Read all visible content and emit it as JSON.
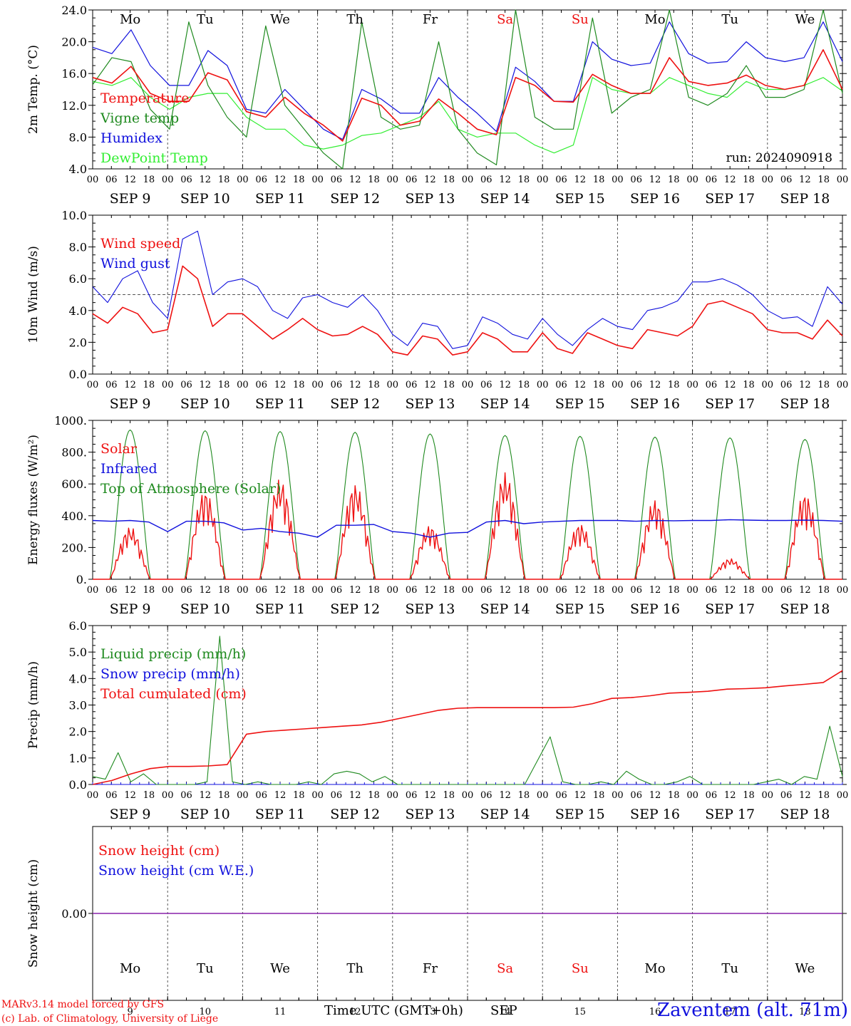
{
  "colors": {
    "red": "#ee1111",
    "dark_green": "#1f8a1f",
    "blue": "#1111dd",
    "light_green": "#33ee33",
    "purple": "#8822aa",
    "grid": "#333333"
  },
  "days": {
    "weekday_labels": [
      "Mo",
      "Tu",
      "We",
      "Th",
      "Fr",
      "Sa",
      "Su",
      "Mo",
      "Tu",
      "We"
    ],
    "weekend_indices": [
      5,
      6
    ],
    "date_labels": [
      "SEP  9",
      "SEP 10",
      "SEP 11",
      "SEP 12",
      "SEP 13",
      "SEP 14",
      "SEP 15",
      "SEP 16",
      "SEP 17",
      "SEP 18"
    ],
    "hour_labels": [
      "00",
      "06",
      "12",
      "18"
    ],
    "final_hour_label": "00",
    "day_numbers": [
      "9",
      "10",
      "11",
      "12",
      "13",
      "14",
      "15",
      "16",
      "17",
      "18"
    ]
  },
  "footer": {
    "model": "MARv3.14 model forced by GFS",
    "lab": "(c) Lab. of Climatology, University of Liege",
    "time_axis": "Time UTC (GMT+0h)",
    "month": "SEP",
    "station": "Zaventem (alt. 71m)"
  },
  "chart_data": [
    {
      "type": "line",
      "ylabel": "2m Temp. (°C)",
      "ylim": [
        4,
        24
      ],
      "yticks": [
        "4.0",
        "8.0",
        "12.0",
        "16.0",
        "20.0",
        "24.0"
      ],
      "annotation": "run: 2024090918",
      "x_unit": "hours since 2024-09-09 00 UTC, 6-hourly",
      "series": [
        {
          "name": "Temperature",
          "color": "red",
          "width": 1.6,
          "values": [
            15.5,
            14.8,
            16.9,
            13.5,
            12.5,
            12.5,
            16.1,
            15.2,
            11.2,
            10.5,
            13.0,
            11.0,
            9.5,
            7.5,
            12.9,
            12.0,
            9.5,
            10.0,
            12.8,
            11.0,
            9.0,
            8.3,
            15.5,
            14.5,
            12.5,
            12.4,
            15.9,
            14.5,
            13.5,
            13.5,
            18.0,
            15.0,
            14.5,
            14.8,
            15.8,
            14.5,
            14.0,
            14.5,
            19.0,
            14.0
          ]
        },
        {
          "name": "Vigne temp",
          "color": "dark_green",
          "width": 1.2,
          "values": [
            14.6,
            18.0,
            17.5,
            11.5,
            9.0,
            22.5,
            14.5,
            10.5,
            8.0,
            22.0,
            12.0,
            9.0,
            6.0,
            4.0,
            22.5,
            10.5,
            9.0,
            9.5,
            20.0,
            9.0,
            6.0,
            4.5,
            24.0,
            10.5,
            9.0,
            9.0,
            23.0,
            11.0,
            13.0,
            14.0,
            24.0,
            13.0,
            12.0,
            13.5,
            17.0,
            13.0,
            13.0,
            14.0,
            24.0,
            13.5
          ]
        },
        {
          "name": "Humidex",
          "color": "blue",
          "width": 1.2,
          "values": [
            19.3,
            18.5,
            21.5,
            17.0,
            14.5,
            14.5,
            18.9,
            17.0,
            11.5,
            11.0,
            14.0,
            11.5,
            9.0,
            7.7,
            14.0,
            12.8,
            11.0,
            11.0,
            15.5,
            13.0,
            11.0,
            8.7,
            16.8,
            15.0,
            12.5,
            12.5,
            20.0,
            17.8,
            17.0,
            17.3,
            22.5,
            18.5,
            17.3,
            17.5,
            20.0,
            18.0,
            17.5,
            18.0,
            22.5,
            17.5
          ]
        },
        {
          "name": "DewPoint Temp",
          "color": "light_green",
          "width": 1.2,
          "values": [
            15.0,
            14.5,
            15.5,
            13.0,
            11.5,
            13.0,
            13.5,
            13.5,
            10.5,
            9.0,
            9.0,
            7.0,
            6.5,
            7.0,
            8.2,
            8.5,
            9.5,
            10.5,
            12.5,
            9.0,
            8.0,
            8.5,
            8.5,
            7.0,
            6.0,
            7.0,
            15.5,
            14.0,
            13.5,
            13.5,
            15.5,
            14.5,
            13.5,
            13.0,
            15.0,
            14.0,
            14.0,
            14.5,
            15.5,
            13.8
          ]
        }
      ]
    },
    {
      "type": "line",
      "ylabel": "10m Wind (m/s)",
      "ylim": [
        0,
        10
      ],
      "yticks": [
        "0.0",
        "2.0",
        "4.0",
        "6.0",
        "8.0",
        "10.0"
      ],
      "reference_line": 5,
      "series": [
        {
          "name": "Wind speed",
          "color": "red",
          "width": 1.6,
          "values": [
            3.8,
            3.2,
            4.2,
            3.8,
            2.6,
            2.8,
            6.8,
            6.0,
            3.0,
            3.8,
            3.8,
            3.0,
            2.2,
            2.8,
            3.5,
            2.8,
            2.4,
            2.5,
            3.0,
            2.5,
            1.4,
            1.2,
            2.4,
            2.2,
            1.2,
            1.4,
            2.6,
            2.2,
            1.4,
            1.4,
            2.6,
            1.6,
            1.3,
            2.6,
            2.2,
            1.8,
            1.6,
            2.8,
            2.6,
            2.4,
            3.0,
            4.4,
            4.6,
            4.2,
            3.8,
            2.8,
            2.6,
            2.6,
            2.2,
            3.4,
            2.4
          ]
        },
        {
          "name": "Wind gust",
          "color": "blue",
          "width": 1.1,
          "values": [
            5.5,
            4.5,
            6.0,
            6.5,
            4.5,
            3.5,
            8.5,
            9.0,
            5.0,
            5.8,
            6.0,
            5.5,
            4.0,
            3.5,
            4.8,
            5.0,
            4.5,
            4.2,
            5.0,
            4.0,
            2.5,
            1.8,
            3.2,
            3.0,
            1.6,
            1.8,
            3.6,
            3.2,
            2.5,
            2.2,
            3.5,
            2.5,
            1.8,
            2.8,
            3.5,
            3.0,
            2.8,
            4.0,
            4.2,
            4.6,
            5.8,
            5.8,
            6.0,
            5.6,
            5.0,
            4.0,
            3.5,
            3.6,
            3.0,
            5.5,
            4.4
          ]
        }
      ]
    },
    {
      "type": "line",
      "ylabel": "Energy fluxes (W/m²)",
      "ylim": [
        0,
        1000
      ],
      "yticks": [
        "0.",
        "200.",
        "400.",
        "600.",
        "800.",
        "1000."
      ],
      "series": [
        {
          "name": "Solar",
          "color": "red",
          "width": 1.4,
          "day_peaks": [
            330,
            560,
            630,
            600,
            340,
            670,
            350,
            500,
            130,
            540
          ]
        },
        {
          "name": "Infrared",
          "color": "blue",
          "width": 1.4,
          "values": [
            370,
            365,
            370,
            360,
            300,
            365,
            365,
            355,
            310,
            320,
            300,
            290,
            265,
            340,
            340,
            345,
            300,
            290,
            265,
            290,
            295,
            360,
            370,
            350,
            360,
            365,
            370,
            370,
            370,
            365,
            370,
            368,
            370,
            370,
            375,
            372,
            370,
            370,
            372,
            370,
            365
          ]
        },
        {
          "name": "Top of Atmosphere (Solar)",
          "color": "dark_green",
          "width": 1.1,
          "day_peaks": [
            940,
            935,
            930,
            925,
            915,
            905,
            900,
            895,
            890,
            880
          ]
        }
      ]
    },
    {
      "type": "line",
      "ylabel": "Precip (mm/h)",
      "ylim": [
        0,
        6
      ],
      "yticks": [
        "0.0",
        "1.0",
        "2.0",
        "3.0",
        "4.0",
        "5.0",
        "6.0"
      ],
      "series": [
        {
          "name": "Liquid precip (mm/h)",
          "color": "dark_green",
          "width": 1.1,
          "values": [
            0.3,
            0.2,
            1.2,
            0.1,
            0.4,
            0,
            0,
            0,
            0,
            0.1,
            5.6,
            0.1,
            0,
            0.1,
            0,
            0,
            0,
            0.1,
            0,
            0.4,
            0.5,
            0.4,
            0.1,
            0.3,
            0,
            0,
            0,
            0,
            0,
            0,
            0,
            0,
            0,
            0,
            0,
            0.9,
            1.8,
            0.1,
            0,
            0,
            0.1,
            0,
            0.5,
            0.2,
            0,
            0,
            0.1,
            0.3,
            0,
            0,
            0,
            0,
            0,
            0.1,
            0.2,
            0,
            0.3,
            0.2,
            2.2,
            0.3
          ]
        },
        {
          "name": "Snow precip (mm/h)",
          "color": "blue",
          "width": 1,
          "values": [
            0,
            0
          ]
        },
        {
          "name": "Total cumulated (cm)",
          "color": "red",
          "width": 1.6,
          "values": [
            0,
            0.15,
            0.4,
            0.6,
            0.68,
            0.68,
            0.7,
            0.75,
            1.9,
            2.0,
            2.05,
            2.1,
            2.15,
            2.2,
            2.25,
            2.35,
            2.5,
            2.65,
            2.8,
            2.88,
            2.9,
            2.9,
            2.9,
            2.9,
            2.9,
            2.92,
            3.05,
            3.25,
            3.28,
            3.35,
            3.45,
            3.48,
            3.52,
            3.6,
            3.62,
            3.65,
            3.72,
            3.78,
            3.85,
            4.3
          ]
        }
      ]
    },
    {
      "type": "line",
      "ylabel": "Snow height (cm)",
      "ylim": [
        -1,
        1
      ],
      "yticks": [
        "0.00"
      ],
      "series": [
        {
          "name": "Snow height (cm)",
          "color": "red",
          "width": 1.4,
          "values": [
            0,
            0
          ]
        },
        {
          "name": "Snow height (cm W.E.)",
          "color": "blue",
          "width": 1.4,
          "values": [
            0,
            0
          ]
        }
      ]
    }
  ]
}
